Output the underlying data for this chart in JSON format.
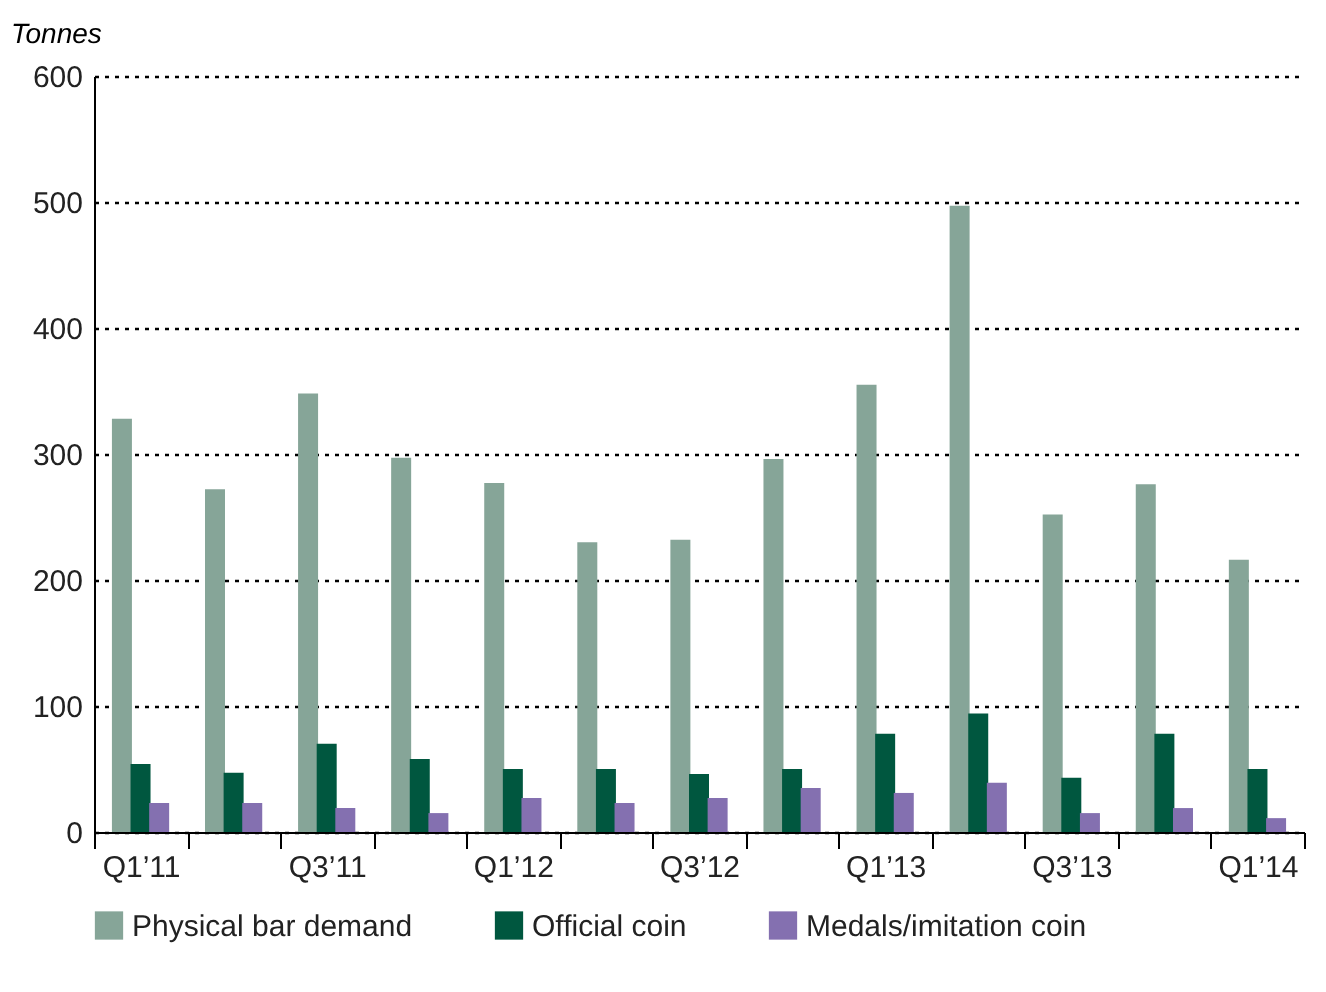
{
  "chart_data": {
    "type": "bar",
    "ylabel": "Tonnes",
    "categories": [
      "Q1’11",
      null,
      "Q3’11",
      null,
      "Q1’12",
      null,
      "Q3’12",
      null,
      "Q1’13",
      null,
      "Q3’13",
      null,
      "Q1’14"
    ],
    "series": [
      {
        "name": "Physical bar demand",
        "color": "#86a598",
        "values": [
          328,
          272,
          348,
          297,
          277,
          230,
          232,
          296,
          355,
          497,
          252,
          276,
          216
        ]
      },
      {
        "name": "Official coin",
        "color": "#00573f",
        "values": [
          54,
          47,
          70,
          58,
          50,
          50,
          46,
          50,
          78,
          94,
          43,
          78,
          50
        ]
      },
      {
        "name": "Medals/imitation coin",
        "color": "#8470b0",
        "values": [
          23,
          23,
          19,
          15,
          27,
          23,
          27,
          35,
          31,
          39,
          15,
          19,
          11
        ]
      }
    ],
    "ylim": [
      0,
      600
    ],
    "yticks": [
      0,
      100,
      200,
      300,
      400,
      500,
      600
    ],
    "grid": "y",
    "legend": "bottom"
  }
}
